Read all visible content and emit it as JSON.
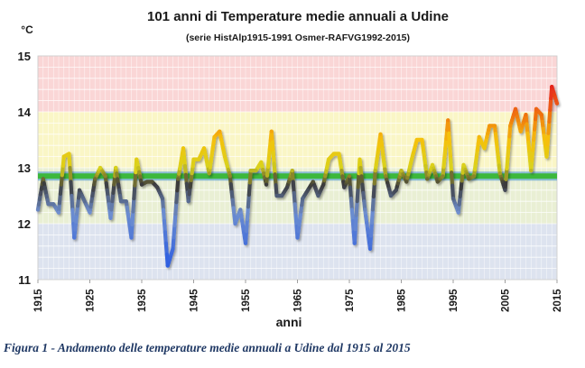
{
  "chart_data": {
    "type": "line",
    "title": "101 anni di Temperature medie annuali a Udine",
    "subtitle": "(serie HistAlp1915-1991 Osmer-RAFVG1992-2015)",
    "ylabel": "°C",
    "xlabel": "anni",
    "ylim": [
      11,
      15
    ],
    "xlim": [
      1915,
      2015
    ],
    "yticks": [
      11,
      12,
      13,
      14,
      15
    ],
    "xticks": [
      1915,
      1925,
      1935,
      1945,
      1955,
      1965,
      1975,
      1985,
      1995,
      2005,
      2015
    ],
    "grid": true,
    "reference_line": {
      "value": 12.85,
      "color": "#3cb83c"
    },
    "background_bands": [
      {
        "from": 11,
        "to": 12,
        "color": "#dde3ef"
      },
      {
        "from": 12,
        "to": 13,
        "color": "#e9efd4"
      },
      {
        "from": 13,
        "to": 14,
        "color": "#faf6c6"
      },
      {
        "from": 14,
        "to": 15,
        "color": "#fad6d6"
      }
    ],
    "series": [
      {
        "x": [
          1915,
          1916,
          1917,
          1918,
          1919,
          1920,
          1921,
          1922,
          1923,
          1924,
          1925,
          1926,
          1927,
          1928,
          1929,
          1930,
          1931,
          1932,
          1933,
          1934,
          1935,
          1936,
          1937,
          1938,
          1939,
          1940,
          1941,
          1942,
          1943,
          1944,
          1945,
          1946,
          1947,
          1948,
          1949,
          1950,
          1951,
          1952,
          1953,
          1954,
          1955,
          1956,
          1957,
          1958,
          1959,
          1960,
          1961,
          1962,
          1963,
          1964,
          1965,
          1966,
          1967,
          1968,
          1969,
          1970,
          1971,
          1972,
          1973,
          1974,
          1975,
          1976,
          1977,
          1978,
          1979,
          1980,
          1981,
          1982,
          1983,
          1984,
          1985,
          1986,
          1987,
          1988,
          1989,
          1990,
          1991,
          1992,
          1993,
          1994,
          1995,
          1996,
          1997,
          1998,
          1999,
          2000,
          2001,
          2002,
          2003,
          2004,
          2005,
          2006,
          2007,
          2008,
          2009,
          2010,
          2011,
          2012,
          2013,
          2014,
          2015
        ],
        "values": [
          12.25,
          12.8,
          12.35,
          12.35,
          12.2,
          13.2,
          13.25,
          11.75,
          12.6,
          12.4,
          12.2,
          12.8,
          13.0,
          12.85,
          12.1,
          13.0,
          12.4,
          12.4,
          11.75,
          13.15,
          12.7,
          12.75,
          12.75,
          12.65,
          12.45,
          11.25,
          11.55,
          12.8,
          13.35,
          12.4,
          13.15,
          13.15,
          13.35,
          12.9,
          13.55,
          13.65,
          13.2,
          12.85,
          12.0,
          12.25,
          11.65,
          12.95,
          12.95,
          13.1,
          12.7,
          13.65,
          12.5,
          12.5,
          12.65,
          12.95,
          11.75,
          12.45,
          12.6,
          12.75,
          12.5,
          12.7,
          13.15,
          13.25,
          13.25,
          12.65,
          12.85,
          11.65,
          13.15,
          12.25,
          11.55,
          12.95,
          13.6,
          12.85,
          12.5,
          12.6,
          12.95,
          12.75,
          13.15,
          13.5,
          13.5,
          12.8,
          13.05,
          12.75,
          12.85,
          13.85,
          12.45,
          12.2,
          13.05,
          12.8,
          12.85,
          13.55,
          13.35,
          13.75,
          13.75,
          12.9,
          12.6,
          13.75,
          14.05,
          13.65,
          13.95,
          12.95,
          14.05,
          13.95,
          13.2,
          14.45,
          14.15
        ]
      }
    ],
    "color_scale": {
      "stops": [
        {
          "value": 11.3,
          "color": "#2f5fe0"
        },
        {
          "value": 12.2,
          "color": "#6f8fcf"
        },
        {
          "value": 12.7,
          "color": "#3a3a3a"
        },
        {
          "value": 13.0,
          "color": "#d9d21c"
        },
        {
          "value": 13.5,
          "color": "#f5c10a"
        },
        {
          "value": 13.9,
          "color": "#f07a10"
        },
        {
          "value": 14.5,
          "color": "#e51e1e"
        }
      ]
    }
  },
  "caption": "Figura 1 - Andamento delle temperature medie annuali a Udine dal 1915 al 2015"
}
